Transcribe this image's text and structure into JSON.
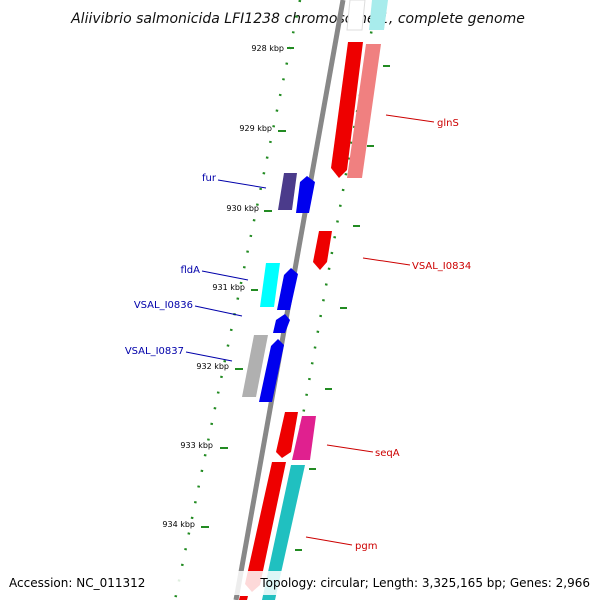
{
  "title": "Aliivibrio salmonicida LFI1238 chromosome 1, complete genome",
  "footer": {
    "accession": "Accession: NC_011312",
    "topology": "Topology: circular; Length: 3,325,165 bp; Genes: 2,966"
  },
  "colors": {
    "backbone": "#888888",
    "tick": "#228b22",
    "forward_label": "#0000aa",
    "reverse_label": "#cc0000"
  },
  "ticks": [
    "928 kbp",
    "929 kbp",
    "930 kbp",
    "931 kbp",
    "932 kbp",
    "933 kbp",
    "934 kbp"
  ],
  "genes": [
    {
      "label": "glnS",
      "strand": "reverse"
    },
    {
      "label": "fur",
      "strand": "forward"
    },
    {
      "label": "VSAL_I0834",
      "strand": "reverse"
    },
    {
      "label": "fldA",
      "strand": "forward"
    },
    {
      "label": "VSAL_I0836",
      "strand": "forward"
    },
    {
      "label": "VSAL_I0837",
      "strand": "forward"
    },
    {
      "label": "seqA",
      "strand": "reverse"
    },
    {
      "label": "pgm",
      "strand": "reverse"
    }
  ]
}
